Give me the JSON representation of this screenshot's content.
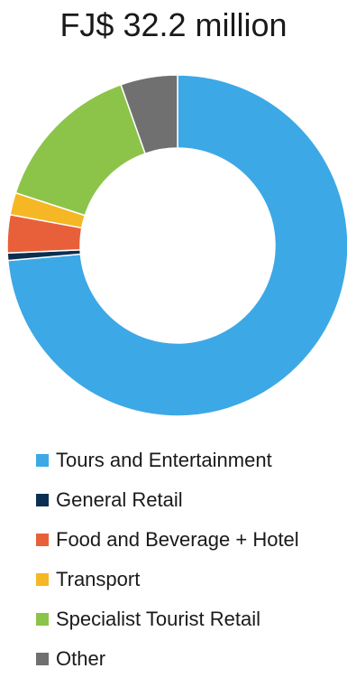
{
  "chart_data": {
    "type": "pie",
    "title": "FJ$ 32.2 million",
    "donut": true,
    "legend_position": "bottom",
    "series": [
      {
        "name": "Tours and Entertainment",
        "value": 73.6,
        "color": "#3ca8e6"
      },
      {
        "name": "General Retail",
        "value": 0.7,
        "color": "#0b2f52"
      },
      {
        "name": "Food and Beverage + Hotel",
        "value": 3.6,
        "color": "#e8603a"
      },
      {
        "name": "Transport",
        "value": 2.1,
        "color": "#f5b724"
      },
      {
        "name": "Specialist Tourist Retail",
        "value": 14.6,
        "color": "#8cc44a"
      },
      {
        "name": "Other",
        "value": 5.4,
        "color": "#707070"
      }
    ]
  }
}
